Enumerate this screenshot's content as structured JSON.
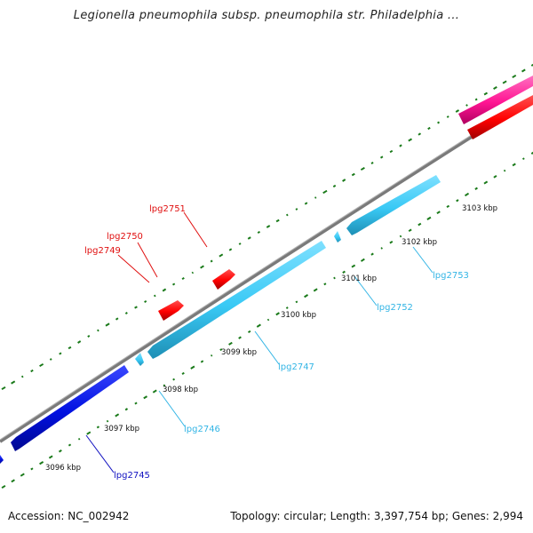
{
  "title": "Legionella pneumophila subsp. pneumophila str. Philadelphia ...",
  "footer": {
    "accession": "Accession: NC_002942",
    "summary": "Topology: circular; Length: 3,397,754 bp; Genes: 2,994"
  },
  "colors": {
    "forward_cds": "#ff0000",
    "forward_rna": "#ff1493",
    "reverse_cds_light": "#39c9f5",
    "reverse_cds_dark": "#0010e0",
    "backbone": "#808080",
    "gc_ticks": "#1a7a1a"
  },
  "scale_ticks": [
    {
      "label": "3096 kbp",
      "pos": 3096
    },
    {
      "label": "3097 kbp",
      "pos": 3097
    },
    {
      "label": "3098 kbp",
      "pos": 3098
    },
    {
      "label": "3099 kbp",
      "pos": 3099
    },
    {
      "label": "3100 kbp",
      "pos": 3100
    },
    {
      "label": "3101 kbp",
      "pos": 3101
    },
    {
      "label": "3102 kbp",
      "pos": 3102
    },
    {
      "label": "3103 kbp",
      "pos": 3103
    }
  ],
  "genes": [
    {
      "label": "lpg2745",
      "strand": "reverse",
      "color": "#1010d0"
    },
    {
      "label": "lpg2746",
      "strand": "reverse",
      "color": "#33b5e5"
    },
    {
      "label": "lpg2747",
      "strand": "reverse",
      "color": "#33b5e5"
    },
    {
      "label": "lpg2749",
      "strand": "forward",
      "color": "#e01010"
    },
    {
      "label": "lpg2750",
      "strand": "forward",
      "color": "#e01010"
    },
    {
      "label": "lpg2751",
      "strand": "forward",
      "color": "#e01010"
    },
    {
      "label": "lpg2752",
      "strand": "reverse",
      "color": "#33b5e5"
    },
    {
      "label": "lpg2753",
      "strand": "reverse",
      "color": "#33b5e5"
    }
  ]
}
